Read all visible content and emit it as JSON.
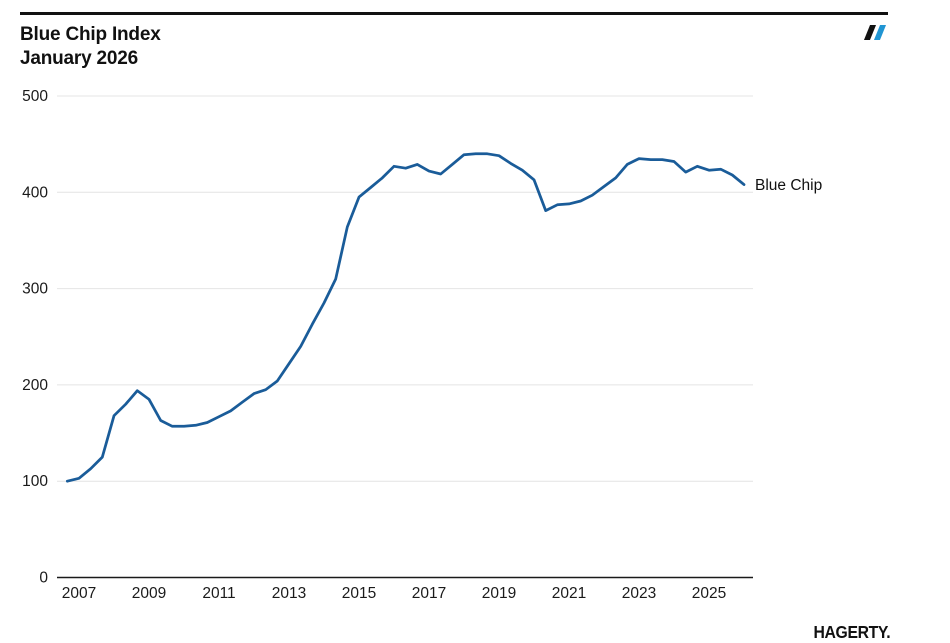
{
  "header": {
    "title_line1": "Blue Chip Index",
    "title_line2": "January 2026",
    "brand_icon": "double-slash-icon",
    "brand_colors": {
      "black": "#111111",
      "blue": "#2095d3"
    }
  },
  "chart_data": {
    "type": "line",
    "title": "Blue Chip Index",
    "subtitle": "January 2026",
    "xlabel": "",
    "ylabel": "",
    "ylim": [
      0,
      500
    ],
    "xlim": [
      2006.4,
      2026.3
    ],
    "grid": "horizontal-light",
    "y_ticks": [
      0,
      100,
      200,
      300,
      400,
      500
    ],
    "x_ticks": [
      2007,
      2009,
      2011,
      2013,
      2015,
      2017,
      2019,
      2021,
      2023,
      2025
    ],
    "legend_position": "right-of-line-end",
    "series": [
      {
        "name": "Blue Chip",
        "color": "#1a5c99",
        "points_per_year": "Jan/May/Sep",
        "x": [
          2006.667,
          2007.0,
          2007.333,
          2007.667,
          2008.0,
          2008.333,
          2008.667,
          2009.0,
          2009.333,
          2009.667,
          2010.0,
          2010.333,
          2010.667,
          2011.0,
          2011.333,
          2011.667,
          2012.0,
          2012.333,
          2012.667,
          2013.0,
          2013.333,
          2013.667,
          2014.0,
          2014.333,
          2014.667,
          2015.0,
          2015.333,
          2015.667,
          2016.0,
          2016.333,
          2016.667,
          2017.0,
          2017.333,
          2017.667,
          2018.0,
          2018.333,
          2018.667,
          2019.0,
          2019.333,
          2019.667,
          2020.0,
          2020.333,
          2020.667,
          2021.0,
          2021.333,
          2021.667,
          2022.0,
          2022.333,
          2022.667,
          2023.0,
          2023.333,
          2023.667,
          2024.0,
          2024.333,
          2024.667,
          2025.0,
          2025.333,
          2025.667,
          2026.0
        ],
        "values": [
          100,
          103,
          113,
          125,
          168,
          180,
          194,
          185,
          163,
          157,
          157,
          158,
          161,
          167,
          173,
          182,
          191,
          195,
          204,
          222,
          240,
          263,
          285,
          310,
          364,
          395,
          405,
          415,
          427,
          425,
          429,
          422,
          419,
          429,
          439,
          440,
          440,
          438,
          430,
          423,
          413,
          381,
          387,
          388,
          391,
          397,
          406,
          415,
          429,
          435,
          434,
          434,
          432,
          421,
          427,
          423,
          424,
          418,
          408
        ]
      }
    ],
    "colors": {
      "line": "#1a5c99",
      "gridline": "#e4e4e4",
      "axis": "#1a1a1a",
      "text": "#1a1a1a"
    }
  },
  "footer": {
    "logo_text": "HAGERTY."
  }
}
